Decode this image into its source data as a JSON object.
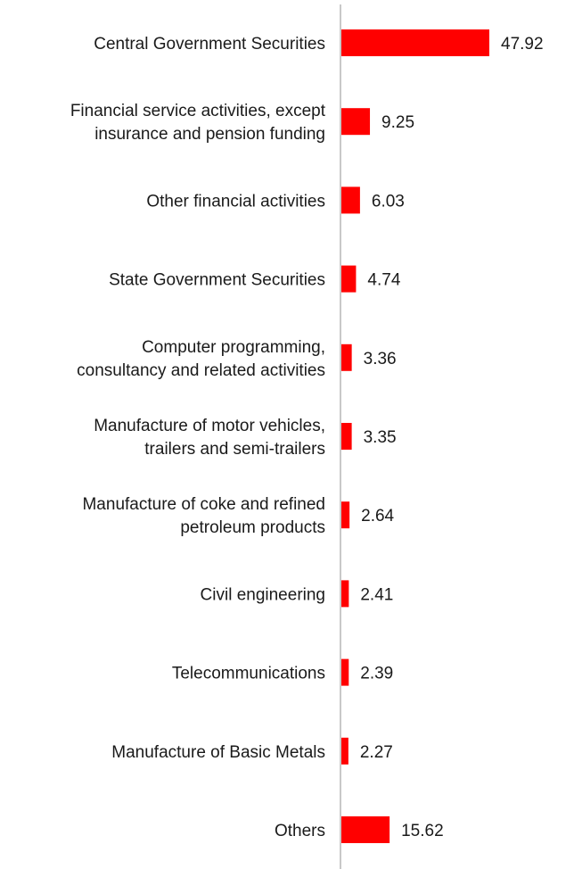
{
  "chart_data": {
    "type": "bar",
    "orientation": "horizontal",
    "title": "",
    "xlabel": "",
    "ylabel": "",
    "xlim": [
      0,
      50
    ],
    "grid": false,
    "legend": "none",
    "bar_color": "#ff0000",
    "axis_color": "#c8c8c8",
    "categories": [
      [
        "Central Government Securities"
      ],
      [
        "Financial service activities, except",
        "insurance and pension funding"
      ],
      [
        "Other financial activities"
      ],
      [
        "State Government Securities"
      ],
      [
        "Computer programming,",
        "consultancy and related activities"
      ],
      [
        "Manufacture of motor vehicles,",
        "trailers and semi-trailers"
      ],
      [
        "Manufacture of coke and refined",
        "petroleum products"
      ],
      [
        "Civil engineering"
      ],
      [
        "Telecommunications"
      ],
      [
        "Manufacture of Basic Metals"
      ],
      [
        "Others"
      ]
    ],
    "values": [
      47.92,
      9.25,
      6.03,
      4.74,
      3.36,
      3.35,
      2.64,
      2.41,
      2.39,
      2.27,
      15.62
    ],
    "value_labels": [
      "47.92",
      "9.25",
      "6.03",
      "4.74",
      "3.36",
      "3.35",
      "2.64",
      "2.41",
      "2.39",
      "2.27",
      "15.62"
    ]
  }
}
